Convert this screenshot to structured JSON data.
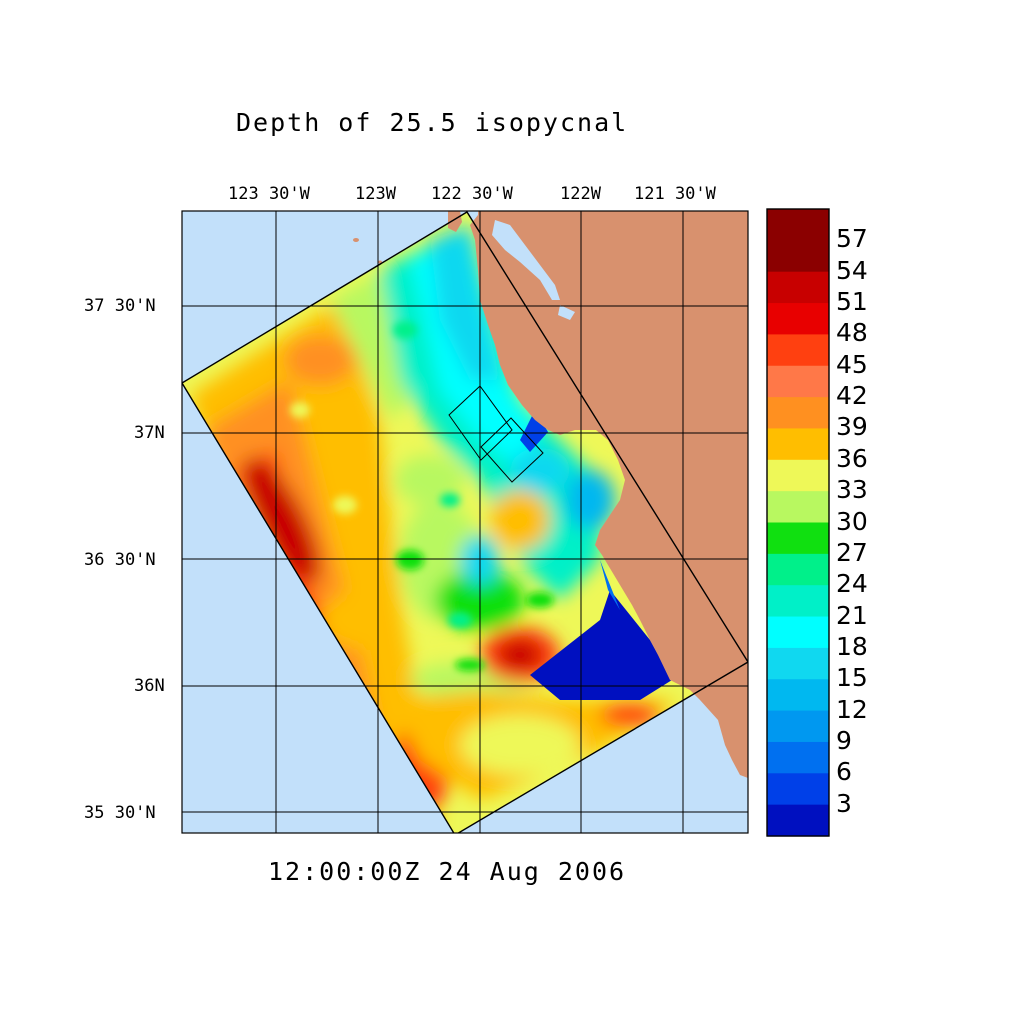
{
  "title": "Depth of 25.5 isopycnal",
  "timestamp": "12:00:00Z  24 Aug 2006",
  "lon_labels": [
    "123 30'W",
    "123W",
    "122 30'W",
    "122W",
    "121 30'W"
  ],
  "lat_labels": [
    "37 30'N",
    "37N",
    "36 30'N",
    "36N",
    "35 30'N"
  ],
  "colorbar": {
    "labels": [
      "57",
      "54",
      "51",
      "48",
      "45",
      "42",
      "39",
      "36",
      "33",
      "30",
      "27",
      "24",
      "21",
      "18",
      "15",
      "12",
      "9",
      "6",
      "3"
    ],
    "colors": [
      "#8b0000",
      "#c80000",
      "#e80000",
      "#ff4010",
      "#ff7848",
      "#ff9020",
      "#ffbe00",
      "#eef858",
      "#b8f860",
      "#10e010",
      "#00f08a",
      "#00f0c8",
      "#00ffff",
      "#10d8f0",
      "#00b8f0",
      "#0098f0",
      "#0070f0",
      "#0040e8",
      "#0010c0"
    ]
  },
  "map": {
    "ocean_color": "#c2e0fa",
    "land_color": "#d8916e",
    "deep_color": "#0010c0"
  }
}
